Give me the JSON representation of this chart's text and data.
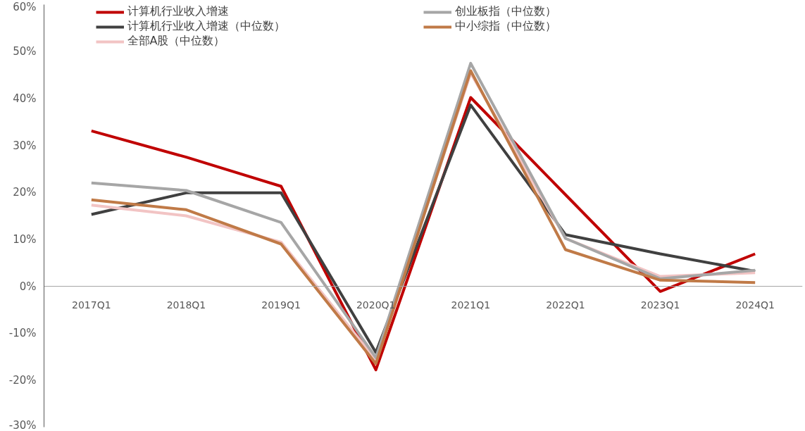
{
  "chart_data": {
    "type": "line",
    "categories": [
      "2017Q1",
      "2018Q1",
      "2019Q1",
      "2020Q1",
      "2021Q1",
      "2022Q1",
      "2023Q1",
      "2024Q1"
    ],
    "series": [
      {
        "name": "计算机行业收入增速",
        "color": "#c00000",
        "values": [
          33.1,
          27.5,
          21.3,
          -17.8,
          40.2,
          19.5,
          -1.1,
          6.9
        ]
      },
      {
        "name": "计算机行业收入增速（中位数）",
        "color": "#404040",
        "values": [
          15.3,
          19.9,
          19.9,
          -14.1,
          38.6,
          11.0,
          6.9,
          3.2
        ]
      },
      {
        "name": "全部A股（中位数）",
        "color": "#f2c4c4",
        "values": [
          17.3,
          15.0,
          9.4,
          -15.7,
          45.4,
          10.2,
          2.1,
          2.9
        ]
      },
      {
        "name": "创业板指（中位数）",
        "color": "#a6a6a6",
        "values": [
          22.0,
          20.4,
          13.6,
          -15.2,
          47.5,
          10.2,
          1.6,
          3.4
        ]
      },
      {
        "name": "中小综指（中位数）",
        "color": "#c07a47",
        "values": [
          18.4,
          16.3,
          9.0,
          -16.5,
          45.9,
          7.8,
          1.3,
          0.8
        ]
      }
    ],
    "ylim": [
      -30,
      60
    ],
    "yticks": [
      {
        "value": -30,
        "label": "-30%"
      },
      {
        "value": -20,
        "label": "-20%"
      },
      {
        "value": -10,
        "label": "-10%"
      },
      {
        "value": 0,
        "label": "0%"
      },
      {
        "value": 10,
        "label": "10%"
      },
      {
        "value": 20,
        "label": "20%"
      },
      {
        "value": 30,
        "label": "30%"
      },
      {
        "value": 40,
        "label": "40%"
      },
      {
        "value": 50,
        "label": "50%"
      },
      {
        "value": 60,
        "label": "60%"
      }
    ],
    "grid": false,
    "legend": "top",
    "marker": "none",
    "line_style": "solid"
  }
}
